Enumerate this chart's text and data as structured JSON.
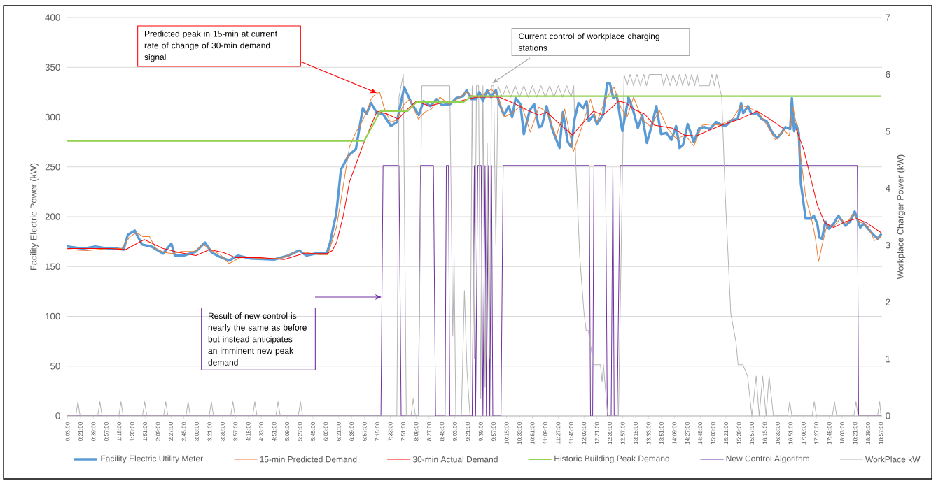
{
  "chart_data": {
    "type": "line",
    "ylabel": "Facility Electric Power (kW)",
    "y2label": "Workplace Charger Power (kW)",
    "xlim": [
      0.025,
      18.975
    ],
    "xticks": [
      {
        "value": 0.05,
        "label": "0:03:00"
      },
      {
        "value": 0.35,
        "label": "0:21:00"
      },
      {
        "value": 0.65,
        "label": "0:39:00"
      },
      {
        "value": 0.95,
        "label": "0:57:00"
      },
      {
        "value": 1.25,
        "label": "1:15:00"
      },
      {
        "value": 1.55,
        "label": "1:33:00"
      },
      {
        "value": 1.85,
        "label": "1:51:00"
      },
      {
        "value": 2.15,
        "label": "2:09:00"
      },
      {
        "value": 2.45,
        "label": "2:27:00"
      },
      {
        "value": 2.75,
        "label": "2:45:00"
      },
      {
        "value": 3.05,
        "label": "3:03:00"
      },
      {
        "value": 3.35,
        "label": "3:21:00"
      },
      {
        "value": 3.65,
        "label": "3:39:00"
      },
      {
        "value": 3.95,
        "label": "3:57:00"
      },
      {
        "value": 4.25,
        "label": "4:15:00"
      },
      {
        "value": 4.55,
        "label": "4:33:00"
      },
      {
        "value": 4.85,
        "label": "4:51:00"
      },
      {
        "value": 5.15,
        "label": "5:09:00"
      },
      {
        "value": 5.45,
        "label": "5:27:00"
      },
      {
        "value": 5.75,
        "label": "5:45:00"
      },
      {
        "value": 6.05,
        "label": "6:03:00"
      },
      {
        "value": 6.35,
        "label": "6:21:00"
      },
      {
        "value": 6.65,
        "label": "6:39:00"
      },
      {
        "value": 6.95,
        "label": "6:57:00"
      },
      {
        "value": 7.25,
        "label": "7:15:00"
      },
      {
        "value": 7.55,
        "label": "7:33:00"
      },
      {
        "value": 7.85,
        "label": "7:51:00"
      },
      {
        "value": 8.15,
        "label": "8:09:00"
      },
      {
        "value": 8.45,
        "label": "8:27:00"
      },
      {
        "value": 8.75,
        "label": "8:45:00"
      },
      {
        "value": 9.05,
        "label": "9:03:00"
      },
      {
        "value": 9.35,
        "label": "9:21:00"
      },
      {
        "value": 9.65,
        "label": "9:39:00"
      },
      {
        "value": 9.95,
        "label": "9:57:00"
      },
      {
        "value": 10.25,
        "label": "10:15:00"
      },
      {
        "value": 10.55,
        "label": "10:33:00"
      },
      {
        "value": 10.85,
        "label": "10:51:00"
      },
      {
        "value": 11.15,
        "label": "11:09:00"
      },
      {
        "value": 11.45,
        "label": "11:27:00"
      },
      {
        "value": 11.75,
        "label": "11:45:00"
      },
      {
        "value": 12.05,
        "label": "12:03:00"
      },
      {
        "value": 12.35,
        "label": "12:21:00"
      },
      {
        "value": 12.65,
        "label": "12:39:00"
      },
      {
        "value": 12.95,
        "label": "12:57:00"
      },
      {
        "value": 13.25,
        "label": "13:15:00"
      },
      {
        "value": 13.55,
        "label": "13:33:00"
      },
      {
        "value": 13.85,
        "label": "13:51:00"
      },
      {
        "value": 14.15,
        "label": "14:09:00"
      },
      {
        "value": 14.45,
        "label": "14:27:00"
      },
      {
        "value": 14.75,
        "label": "14:45:00"
      },
      {
        "value": 15.05,
        "label": "15:03:00"
      },
      {
        "value": 15.35,
        "label": "15:21:00"
      },
      {
        "value": 15.65,
        "label": "15:39:00"
      },
      {
        "value": 15.95,
        "label": "15:57:00"
      },
      {
        "value": 16.25,
        "label": "16:15:00"
      },
      {
        "value": 16.55,
        "label": "16:33:00"
      },
      {
        "value": 16.85,
        "label": "16:51:00"
      },
      {
        "value": 17.15,
        "label": "17:09:00"
      },
      {
        "value": 17.45,
        "label": "17:27:00"
      },
      {
        "value": 17.75,
        "label": "17:45:00"
      },
      {
        "value": 18.05,
        "label": "18:03:00"
      },
      {
        "value": 18.35,
        "label": "18:21:00"
      },
      {
        "value": 18.65,
        "label": "18:39:00"
      },
      {
        "value": 18.95,
        "label": "18:57:00"
      }
    ],
    "ylim": [
      0,
      400
    ],
    "yticks": [
      0,
      50,
      100,
      150,
      200,
      250,
      300,
      350,
      400
    ],
    "y2lim": [
      0,
      7
    ],
    "y2ticks": [
      0,
      1,
      2,
      3,
      4,
      5,
      6,
      7
    ],
    "grid": "y",
    "legend": "bottom",
    "marker": "none",
    "line_style": "solid",
    "series": [
      {
        "name": "Facility Electric Utility Meter",
        "color": "#5b9bd5",
        "x": [
          0.05,
          0.4,
          0.7,
          1.0,
          1.2,
          1.35,
          1.45,
          1.61,
          1.78,
          2.0,
          2.27,
          2.46,
          2.54,
          2.75,
          3.03,
          3.24,
          3.4,
          3.57,
          3.8,
          4.01,
          4.3,
          4.85,
          5.17,
          5.43,
          5.6,
          5.8,
          6.07,
          6.15,
          6.24,
          6.29,
          6.4,
          6.57,
          6.75,
          6.83,
          6.91,
          6.99,
          7.1,
          7.24,
          7.38,
          7.56,
          7.7,
          7.87,
          8.04,
          8.21,
          8.32,
          8.48,
          8.62,
          8.75,
          8.94,
          9.08,
          9.24,
          9.32,
          9.43,
          9.54,
          9.62,
          9.7,
          9.8,
          9.89,
          10.0,
          10.08,
          10.19,
          10.3,
          10.38,
          10.46,
          10.57,
          10.65,
          10.79,
          10.89,
          11.0,
          11.07,
          11.18,
          11.29,
          11.37,
          11.48,
          11.56,
          11.67,
          11.75,
          11.83,
          11.92,
          12.03,
          12.11,
          12.16,
          12.27,
          12.35,
          12.49,
          12.59,
          12.65,
          12.73,
          12.81,
          12.89,
          12.94,
          13.03,
          13.08,
          13.19,
          13.3,
          13.4,
          13.51,
          13.62,
          13.73,
          13.84,
          13.97,
          14.08,
          14.19,
          14.27,
          14.35,
          14.46,
          14.6,
          14.73,
          14.84,
          14.97,
          15.12,
          15.25,
          15.34,
          15.48,
          15.62,
          15.7,
          15.75,
          15.86,
          15.94,
          16.07,
          16.18,
          16.29,
          16.43,
          16.54,
          16.62,
          16.73,
          16.84,
          16.88,
          16.93,
          16.98,
          17.04,
          17.09,
          17.2,
          17.33,
          17.39,
          17.47,
          17.52,
          17.58,
          17.66,
          17.74,
          17.85,
          17.96,
          18.12,
          18.23,
          18.34,
          18.47,
          18.55,
          18.77,
          18.88,
          18.95
        ],
        "values": [
          170,
          168,
          170,
          168,
          168,
          167,
          182,
          186,
          172,
          170,
          163,
          173,
          161,
          161,
          165,
          174,
          164,
          160,
          156,
          161,
          158,
          157,
          161,
          166,
          161,
          163,
          163,
          174,
          193,
          202,
          247,
          261,
          268,
          289,
          309,
          303,
          314,
          304,
          303,
          291,
          295,
          330,
          314,
          302,
          316,
          311,
          318,
          312,
          313,
          319,
          321,
          327,
          318,
          318,
          325,
          316,
          327,
          320,
          327,
          314,
          302,
          311,
          300,
          319,
          313,
          283,
          307,
          313,
          290,
          291,
          311,
          291,
          281,
          269,
          305,
          275,
          270,
          298,
          314,
          309,
          316,
          296,
          302,
          293,
          302,
          334,
          334,
          319,
          322,
          299,
          286,
          307,
          320,
          307,
          289,
          302,
          274,
          291,
          311,
          283,
          284,
          277,
          291,
          269,
          272,
          293,
          275,
          289,
          290,
          288,
          295,
          292,
          291,
          297,
          298,
          314,
          304,
          311,
          303,
          304,
          298,
          296,
          284,
          279,
          283,
          290,
          288,
          319,
          286,
          293,
          284,
          233,
          198,
          198,
          201,
          193,
          179,
          178,
          195,
          188,
          193,
          201,
          191,
          195,
          205,
          189,
          193,
          182,
          178,
          182
        ]
      },
      {
        "name": "15-min Predicted Demand",
        "color": "#ed7d31",
        "x": [
          0.05,
          0.5,
          1.0,
          1.3,
          1.5,
          1.65,
          1.8,
          1.95,
          2.1,
          2.3,
          2.5,
          2.7,
          3.0,
          3.2,
          3.4,
          3.6,
          3.8,
          4.1,
          4.5,
          5.0,
          5.4,
          5.6,
          5.9,
          6.1,
          6.3,
          6.45,
          6.6,
          6.75,
          6.85,
          7.0,
          7.1,
          7.2,
          7.3,
          7.4,
          7.55,
          7.7,
          7.85,
          8.0,
          8.2,
          8.35,
          8.5,
          8.7,
          8.9,
          9.1,
          9.3,
          9.5,
          9.7,
          9.9,
          10.05,
          10.2,
          10.4,
          10.6,
          10.8,
          11.0,
          11.2,
          11.4,
          11.6,
          11.8,
          12.0,
          12.2,
          12.35,
          12.55,
          12.75,
          12.9,
          13.05,
          13.2,
          13.4,
          13.6,
          13.8,
          14.0,
          14.2,
          14.4,
          14.6,
          14.8,
          15.0,
          15.2,
          15.5,
          15.7,
          15.9,
          16.1,
          16.3,
          16.5,
          16.7,
          16.82,
          16.9,
          17.0,
          17.1,
          17.2,
          17.35,
          17.42,
          17.5,
          17.6,
          17.7,
          17.85,
          18.0,
          18.15,
          18.3,
          18.45,
          18.65,
          18.8,
          18.95
        ],
        "values": [
          167,
          166,
          168,
          168,
          180,
          184,
          180,
          180,
          168,
          164,
          163,
          165,
          165,
          172,
          166,
          162,
          153,
          160,
          158,
          158,
          165,
          164,
          162,
          162,
          190,
          230,
          270,
          285,
          292,
          305,
          318,
          323,
          325,
          310,
          295,
          297,
          312,
          318,
          298,
          305,
          308,
          320,
          313,
          318,
          325,
          320,
          322,
          328,
          320,
          300,
          305,
          312,
          285,
          310,
          305,
          280,
          308,
          265,
          290,
          318,
          295,
          318,
          330,
          310,
          300,
          320,
          298,
          290,
          307,
          288,
          278,
          282,
          271,
          292,
          293,
          292,
          298,
          312,
          309,
          305,
          292,
          277,
          287,
          281,
          310,
          290,
          255,
          220,
          195,
          180,
          155,
          175,
          192,
          190,
          198,
          193,
          203,
          195,
          190,
          176,
          180
        ]
      },
      {
        "name": "30-min Actual Demand",
        "color": "#ff0000",
        "x": [
          0.05,
          1.03,
          1.4,
          1.83,
          2.27,
          2.65,
          3.03,
          3.35,
          3.67,
          3.95,
          4.54,
          5.08,
          5.52,
          6.07,
          6.2,
          6.3,
          6.45,
          6.6,
          6.94,
          7.24,
          7.48,
          7.73,
          7.92,
          8.16,
          8.45,
          8.72,
          9.16,
          9.54,
          10.08,
          10.41,
          10.73,
          11.0,
          11.18,
          11.51,
          11.78,
          12.0,
          12.27,
          12.49,
          12.86,
          13.03,
          13.24,
          13.46,
          13.68,
          14.1,
          14.38,
          14.65,
          14.92,
          15.19,
          15.67,
          16.07,
          16.37,
          16.7,
          16.98,
          17.15,
          17.31,
          17.47,
          17.64,
          17.85,
          18.12,
          18.39,
          18.61,
          18.95
        ],
        "values": [
          168,
          168,
          167,
          177,
          168,
          164,
          161,
          167,
          164,
          159,
          159,
          157,
          163,
          163,
          166,
          174,
          200,
          235,
          275,
          306,
          303,
          298,
          307,
          316,
          311,
          314,
          316,
          320,
          320,
          314,
          307,
          302,
          305,
          292,
          282,
          293,
          306,
          302,
          316,
          314,
          307,
          303,
          292,
          289,
          282,
          281,
          286,
          291,
          298,
          306,
          298,
          288,
          288,
          268,
          240,
          212,
          194,
          189,
          195,
          198,
          194,
          184
        ]
      },
      {
        "name": "Historic Building Peak Demand",
        "color": "#92d050",
        "x": [
          0.05,
          6.94,
          7.32,
          7.95,
          8.16,
          9.25,
          9.43,
          18.95
        ],
        "values": [
          276,
          276,
          306,
          306,
          315,
          315,
          321,
          321
        ]
      },
      {
        "name": "New Control Algorithm",
        "color": "#7030a0",
        "axis": "y2",
        "x": [
          0.05,
          7.33,
          7.38,
          7.75,
          7.8,
          8.2,
          8.25,
          8.55,
          8.6,
          8.82,
          8.85,
          8.9,
          8.93,
          9.45,
          9.5,
          9.53,
          9.58,
          9.66,
          9.7,
          9.75,
          9.78,
          9.83,
          9.86,
          9.9,
          9.93,
          10.12,
          10.17,
          12.17,
          12.2,
          12.25,
          12.28,
          12.55,
          12.59,
          12.68,
          12.72,
          12.75,
          12.82,
          12.89,
          18.4,
          18.43,
          18.95
        ],
        "values": [
          0,
          0,
          4.4,
          4.4,
          0,
          0,
          4.4,
          4.4,
          0,
          0,
          4.4,
          4.4,
          0,
          0,
          4.4,
          0,
          4.4,
          4.4,
          0,
          4.4,
          0,
          4.4,
          0,
          4.4,
          0,
          0,
          4.4,
          4.4,
          0,
          0,
          4.4,
          4.4,
          0,
          0,
          4.4,
          0,
          0,
          4.4,
          4.4,
          0,
          0
        ]
      },
      {
        "name": "WorkPlace kW",
        "color": "#b4b4b4",
        "axis": "y2",
        "x": [
          0.05,
          0.24,
          0.29,
          0.34,
          0.75,
          0.8,
          0.85,
          1.24,
          1.29,
          1.34,
          1.79,
          1.84,
          1.89,
          2.28,
          2.33,
          2.38,
          2.8,
          2.85,
          2.9,
          3.34,
          3.39,
          3.44,
          3.84,
          3.89,
          3.94,
          4.35,
          4.4,
          4.45,
          4.89,
          4.94,
          4.99,
          5.41,
          5.46,
          5.51,
          7.7,
          7.75,
          7.85,
          7.92,
          8.03,
          8.08,
          8.13,
          8.2,
          8.28,
          8.93,
          9.0,
          9.03,
          9.07,
          9.2,
          9.27,
          9.33,
          9.4,
          9.45,
          9.5,
          9.55,
          9.6,
          9.65,
          9.7,
          9.75,
          9.8,
          9.85,
          9.9,
          9.95,
          10.0,
          10.05,
          10.15,
          10.25,
          10.35,
          10.45,
          10.55,
          10.65,
          10.75,
          10.85,
          10.95,
          11.05,
          11.15,
          11.25,
          11.35,
          11.45,
          11.55,
          11.65,
          11.75,
          11.81,
          11.86,
          11.9,
          11.95,
          12.05,
          12.1,
          12.15,
          12.27,
          12.43,
          12.47,
          12.5,
          12.6,
          12.85,
          12.98,
          13.05,
          13.12,
          13.2,
          13.28,
          13.36,
          13.44,
          13.5,
          13.57,
          13.84,
          13.9,
          13.97,
          14.05,
          14.12,
          14.2,
          14.27,
          14.34,
          14.41,
          14.48,
          14.55,
          14.62,
          14.68,
          14.73,
          14.96,
          15.02,
          15.08,
          15.13,
          15.25,
          15.33,
          15.41,
          15.46,
          15.58,
          15.63,
          15.74,
          15.85,
          15.95,
          16.05,
          16.12,
          16.2,
          16.28,
          16.35,
          16.45,
          16.78,
          16.83,
          16.88,
          17.35,
          17.4,
          17.45,
          17.82,
          17.87,
          17.92,
          18.32,
          18.37,
          18.42,
          18.87,
          18.92,
          18.95
        ],
        "values": [
          0,
          0,
          0.25,
          0,
          0,
          0.25,
          0,
          0,
          0.25,
          0,
          0,
          0.25,
          0,
          0,
          0.25,
          0,
          0,
          0.25,
          0,
          0,
          0.25,
          0,
          0,
          0.25,
          0,
          0,
          0.25,
          0,
          0,
          0.25,
          0,
          0,
          0.25,
          0,
          0,
          5.6,
          6,
          0,
          0,
          0.3,
          0,
          0,
          5.8,
          5.8,
          1.4,
          2.8,
          0,
          0,
          2.2,
          0.8,
          0,
          5.8,
          1,
          5.8,
          5.8,
          0.3,
          5.8,
          0.5,
          4.8,
          1,
          5.8,
          5.8,
          3,
          5.8,
          5.6,
          5.8,
          5.6,
          5.8,
          5.6,
          5.8,
          5.6,
          5.8,
          5.6,
          5.8,
          5.6,
          5.8,
          5.6,
          5.8,
          5.6,
          5.8,
          5.6,
          5.8,
          4.4,
          3.7,
          2.8,
          1.8,
          1.5,
          1.5,
          0.9,
          0.9,
          0.6,
          0.9,
          0,
          0,
          6,
          5.8,
          6,
          5.8,
          6,
          5.8,
          6,
          5.8,
          6,
          6,
          5.8,
          6,
          5.8,
          6,
          5.8,
          6,
          5.8,
          6,
          5.8,
          6,
          5.8,
          6,
          5.8,
          5.8,
          6,
          5.8,
          6,
          5.6,
          3.9,
          2.6,
          1.8,
          1.3,
          0.9,
          0.9,
          0.7,
          0,
          0.7,
          0,
          0.7,
          0,
          0.7,
          0,
          0,
          0.25,
          0,
          0,
          0.25,
          0,
          0,
          0.25,
          0,
          0,
          0.25,
          0,
          0,
          0.25,
          0
        ]
      }
    ],
    "annotations": [
      "Predicted peak in 15-min at current rate of change of 30-min demand signal",
      {
        "text": "Current control of workplace charging stations",
        "x": 9.92,
        "y": 334
      },
      "Result of new control is nearly the same as before but instead anticipates an imminent new peak demand"
    ]
  }
}
